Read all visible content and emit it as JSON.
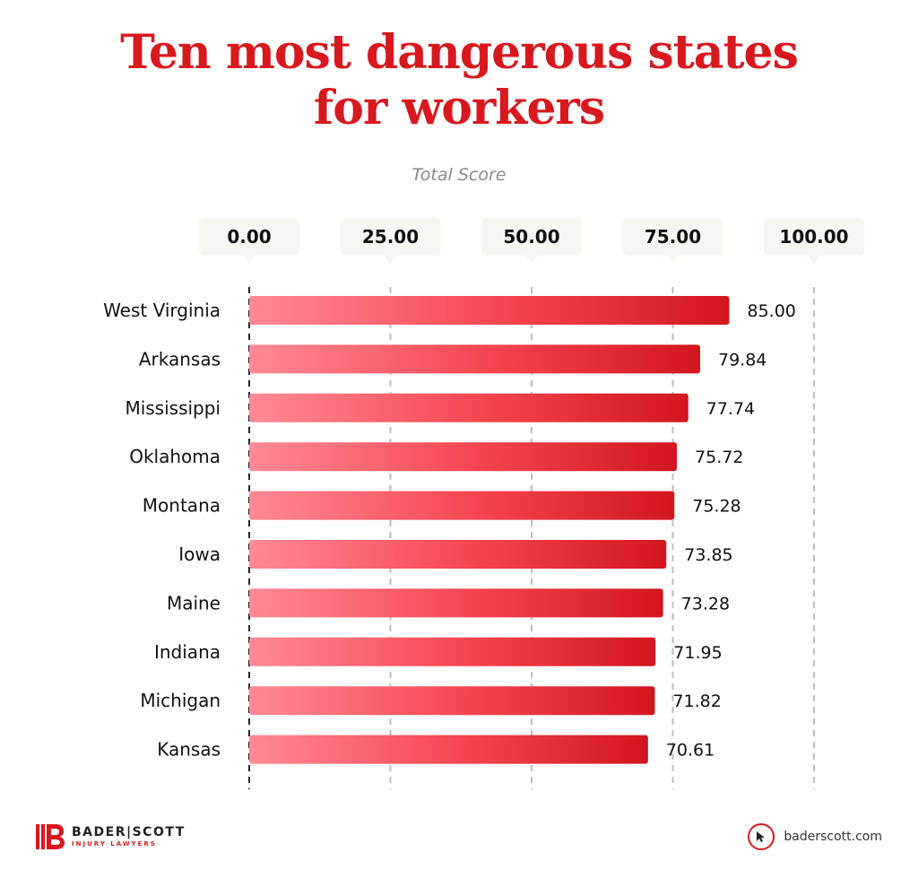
{
  "title_line1": "Ten most dangerous states",
  "title_line2": "for workers",
  "subtitle": "Total Score",
  "brand": {
    "name": "BADER|SCOTT",
    "tagline": "INJURY LAWYERS",
    "website": "baderscott.com"
  },
  "colors": {
    "title": "#d7191f",
    "bar_start": "#ff8a96",
    "bar_mid": "#f5434e",
    "bar_end": "#d1161f",
    "tick_box": "#f6f5f0",
    "grid": "#bdbdbd"
  },
  "icons": {
    "cursor": "cursor-arrow-icon",
    "logo": "bader-scott-logo-icon"
  },
  "chart_data": {
    "type": "bar",
    "orientation": "horizontal",
    "title": "Ten most dangerous states for workers",
    "xlabel": "Total Score",
    "xlim": [
      0,
      100
    ],
    "ticks": [
      "0.00",
      "25.00",
      "50.00",
      "75.00",
      "100.00"
    ],
    "tick_values": [
      0,
      25,
      50,
      75,
      100
    ],
    "grid": true,
    "categories": [
      "West Virginia",
      "Arkansas",
      "Mississippi",
      "Oklahoma",
      "Montana",
      "Iowa",
      "Maine",
      "Indiana",
      "Michigan",
      "Kansas"
    ],
    "values": [
      85.0,
      79.84,
      77.74,
      75.72,
      75.28,
      73.85,
      73.28,
      71.95,
      71.82,
      70.61
    ],
    "value_labels": [
      "85.00",
      "79.84",
      "77.74",
      "75.72",
      "75.28",
      "73.85",
      "73.28",
      "71.95",
      "71.82",
      "70.61"
    ]
  }
}
